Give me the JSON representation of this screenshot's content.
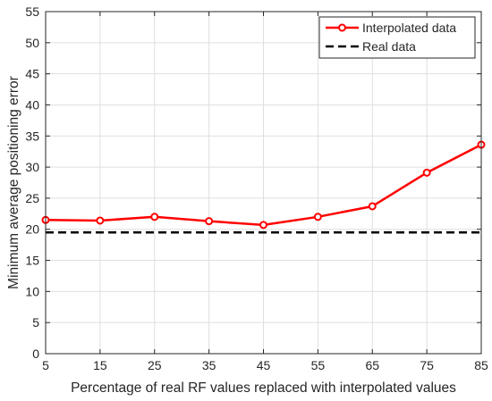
{
  "chart_data": {
    "type": "line",
    "xlabel": "Percentage of real RF values replaced with interpolated values",
    "ylabel": "Minimum average positioning error",
    "xlim": [
      5,
      85
    ],
    "ylim": [
      0,
      55
    ],
    "x_ticks": [
      5,
      15,
      25,
      35,
      45,
      55,
      65,
      75,
      85
    ],
    "y_ticks": [
      0,
      5,
      10,
      15,
      20,
      25,
      30,
      35,
      40,
      45,
      50,
      55
    ],
    "grid": true,
    "legend_position": "top-right",
    "series": [
      {
        "name": "Interpolated data",
        "color": "#ff0000",
        "style": "solid",
        "marker": "circle",
        "x": [
          5,
          15,
          25,
          35,
          45,
          55,
          65,
          75,
          85
        ],
        "y": [
          21.5,
          21.4,
          22.0,
          21.3,
          20.7,
          22.0,
          23.7,
          29.1,
          33.6
        ]
      },
      {
        "name": "Real data",
        "color": "#000000",
        "style": "dashed",
        "marker": "none",
        "x": [
          5,
          85
        ],
        "y": [
          19.5,
          19.5
        ]
      }
    ]
  }
}
